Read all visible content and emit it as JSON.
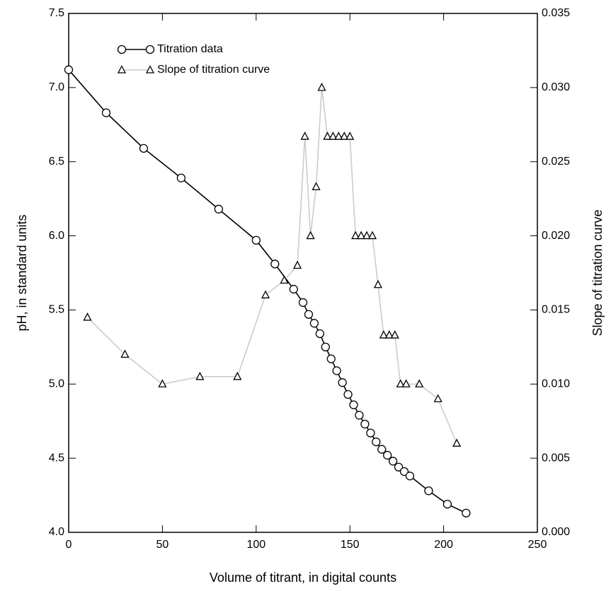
{
  "chart_data": {
    "type": "line",
    "xlabel": "Volume of titrant, in digital counts",
    "ylabel": "pH, in standard units",
    "y2label": "Slope of titration curve",
    "xlim": [
      0,
      250
    ],
    "xticks": [
      0,
      50,
      100,
      150,
      200,
      250
    ],
    "ylim": [
      4.0,
      7.5
    ],
    "yticks": [
      {
        "value": 4.0,
        "label": "4.0"
      },
      {
        "value": 4.5,
        "label": "4.5"
      },
      {
        "value": 5.0,
        "label": "5.0"
      },
      {
        "value": 5.5,
        "label": "5.5"
      },
      {
        "value": 6.0,
        "label": "6.0"
      },
      {
        "value": 6.5,
        "label": "6.5"
      },
      {
        "value": 7.0,
        "label": "7.0"
      },
      {
        "value": 7.5,
        "label": "7.5"
      }
    ],
    "y2lim": [
      0,
      0.035
    ],
    "y2ticks": [
      {
        "value": 0,
        "label": "0.000"
      },
      {
        "value": 0.005,
        "label": "0.005"
      },
      {
        "value": 0.01,
        "label": "0.010"
      },
      {
        "value": 0.015,
        "label": "0.015"
      },
      {
        "value": 0.02,
        "label": "0.020"
      },
      {
        "value": 0.025,
        "label": "0.025"
      },
      {
        "value": 0.03,
        "label": "0.030"
      },
      {
        "value": 0.035,
        "label": "0.035"
      }
    ],
    "legend": "upper left",
    "series": [
      {
        "name": "Titration data",
        "color": "#000000",
        "marker": "circle",
        "x": [
          0,
          20,
          40,
          60,
          80,
          100,
          110,
          120,
          125,
          128,
          131,
          134,
          137,
          140,
          143,
          146,
          149,
          152,
          155,
          158,
          161,
          164,
          167,
          170,
          173,
          176,
          179,
          182,
          192,
          202,
          212
        ],
        "values": [
          7.12,
          6.83,
          6.59,
          6.39,
          6.18,
          5.97,
          5.81,
          5.64,
          5.55,
          5.47,
          5.41,
          5.34,
          5.25,
          5.17,
          5.09,
          5.01,
          4.93,
          4.86,
          4.79,
          4.73,
          4.67,
          4.61,
          4.56,
          4.52,
          4.48,
          4.44,
          4.41,
          4.38,
          4.28,
          4.19,
          4.13
        ]
      },
      {
        "name": "Slope of titration curve",
        "color": "#cccccc",
        "marker": "triangle",
        "axis": "y2",
        "x": [
          10,
          30,
          50,
          70,
          90,
          105,
          115,
          122,
          126,
          129,
          132,
          135,
          138,
          141,
          144,
          147,
          150,
          153,
          156,
          159,
          162,
          165,
          168,
          171,
          174,
          177,
          180,
          187,
          197,
          207
        ],
        "values": [
          0.0145,
          0.012,
          0.01,
          0.0105,
          0.0105,
          0.016,
          0.017,
          0.018,
          0.0267,
          0.02,
          0.0233,
          0.03,
          0.0267,
          0.0267,
          0.0267,
          0.0267,
          0.0267,
          0.02,
          0.02,
          0.02,
          0.02,
          0.0167,
          0.0133,
          0.0133,
          0.0133,
          0.01,
          0.01,
          0.01,
          0.009,
          0.006
        ]
      }
    ]
  }
}
